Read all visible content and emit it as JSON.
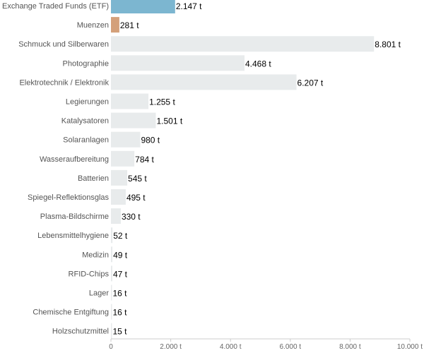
{
  "chart_data": {
    "type": "bar",
    "orientation": "horizontal",
    "categories": [
      "Exchange Traded Funds (ETF)",
      "Muenzen",
      "Schmuck und Silberwaren",
      "Photographie",
      "Elektrotechnik / Elektronik",
      "Legierungen",
      "Katalysatoren",
      "Solaranlagen",
      "Wasseraufbereitung",
      "Batterien",
      "Spiegel-Reflektionsglas",
      "Plasma-Bildschirme",
      "Lebensmittelhygiene",
      "Medizin",
      "RFID-Chips",
      "Lager",
      "Chemische Entgiftung",
      "Holzschutzmittel"
    ],
    "values": [
      2147,
      281,
      8801,
      4468,
      6207,
      1255,
      1501,
      980,
      784,
      545,
      495,
      330,
      52,
      49,
      47,
      16,
      16,
      15
    ],
    "value_labels": [
      "2.147 t",
      "281 t",
      "8.801 t",
      "4.468 t",
      "6.207 t",
      "1.255 t",
      "1.501 t",
      "980 t",
      "784 t",
      "545 t",
      "495 t",
      "330 t",
      "52 t",
      "49 t",
      "47 t",
      "16 t",
      "16 t",
      "15 t"
    ],
    "colors": [
      "#7cb6d0",
      "#d4a07a",
      "#e8ebec",
      "#e8ebec",
      "#e8ebec",
      "#e8ebec",
      "#e8ebec",
      "#e8ebec",
      "#e8ebec",
      "#e8ebec",
      "#e8ebec",
      "#e8ebec",
      "#e8ebec",
      "#e8ebec",
      "#e8ebec",
      "#e8ebec",
      "#e8ebec",
      "#e8ebec"
    ],
    "x_ticks": [
      0,
      2000,
      4000,
      6000,
      8000,
      10000
    ],
    "x_tick_labels": [
      "0",
      "2.000 t",
      "4.000 t",
      "6.000 t",
      "8.000 t",
      "10.000 t"
    ],
    "xlim": [
      0,
      10000
    ],
    "title": "",
    "xlabel": "",
    "ylabel": "",
    "grid": false,
    "legend": "none"
  }
}
